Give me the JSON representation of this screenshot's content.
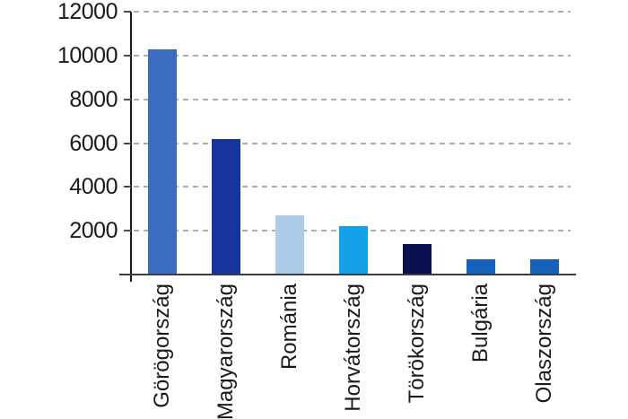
{
  "chart_data": {
    "type": "bar",
    "title": "",
    "xlabel": "",
    "ylabel": "",
    "categories": [
      "Görögország",
      "Magyarország",
      "Románia",
      "Horvátország",
      "Törökország",
      "Bulgária",
      "Olaszország"
    ],
    "values": [
      10300,
      6200,
      2700,
      2200,
      1400,
      700,
      700
    ],
    "bar_colors": [
      "#3B6CC0",
      "#16329B",
      "#AFCBEA",
      "#15A1E8",
      "#0A0F50",
      "#1560BA",
      "#1560BA"
    ],
    "ylim": [
      0,
      12000
    ],
    "yticks": [
      2000,
      4000,
      6000,
      8000,
      10000,
      12000
    ],
    "ytick_labels": [
      "2000",
      "4000",
      "6000",
      "8000",
      "10000",
      "12000"
    ],
    "grid": "horizontal-dashed",
    "legend_position": "none"
  },
  "colors": {
    "background": "#FFFFFF",
    "gridline": "#ADADAD",
    "axis": "#1A1A1A",
    "baseline": "#3D3D3D",
    "label_text": "#1A1A1A"
  }
}
